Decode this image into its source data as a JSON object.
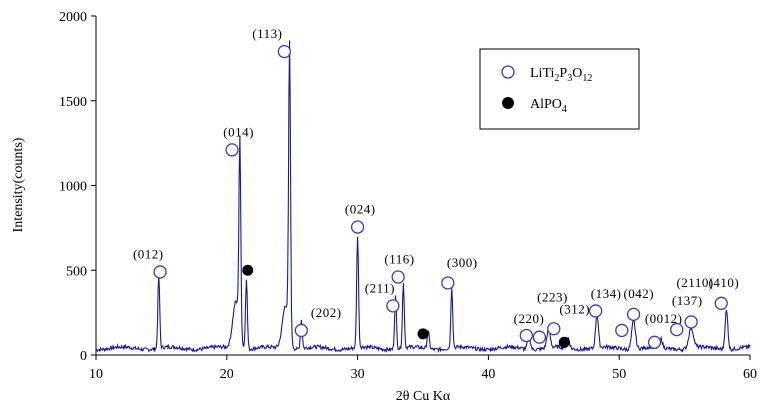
{
  "chart_data": {
    "type": "line",
    "xlabel": "2θ Cu Kα",
    "ylabel": "Intensity(counts)",
    "xlim": [
      10,
      60
    ],
    "ylim": [
      0,
      2000
    ],
    "x_ticks": [
      10,
      20,
      30,
      40,
      50,
      60
    ],
    "y_ticks": [
      0,
      500,
      1000,
      1500,
      2000
    ],
    "grid": false,
    "line_color": "#1a1a8c",
    "baseline": 40,
    "peaks": [
      {
        "x": 14.8,
        "y": 430,
        "w": 0.1
      },
      {
        "x": 20.7,
        "y": 280,
        "w": 0.35
      },
      {
        "x": 21.0,
        "y": 1120,
        "w": 0.1
      },
      {
        "x": 21.5,
        "y": 420,
        "w": 0.1
      },
      {
        "x": 24.5,
        "y": 260,
        "w": 0.35
      },
      {
        "x": 24.8,
        "y": 1700,
        "w": 0.1
      },
      {
        "x": 25.7,
        "y": 170,
        "w": 0.1
      },
      {
        "x": 30.0,
        "y": 660,
        "w": 0.1
      },
      {
        "x": 32.9,
        "y": 310,
        "w": 0.1
      },
      {
        "x": 33.5,
        "y": 380,
        "w": 0.1
      },
      {
        "x": 35.4,
        "y": 100,
        "w": 0.12
      },
      {
        "x": 37.2,
        "y": 360,
        "w": 0.1
      },
      {
        "x": 43.1,
        "y": 80,
        "w": 0.15
      },
      {
        "x": 44.6,
        "y": 110,
        "w": 0.18
      },
      {
        "x": 46.1,
        "y": 60,
        "w": 0.15
      },
      {
        "x": 48.3,
        "y": 200,
        "w": 0.15
      },
      {
        "x": 51.1,
        "y": 170,
        "w": 0.2
      },
      {
        "x": 53.2,
        "y": 50,
        "w": 0.15
      },
      {
        "x": 55.5,
        "y": 120,
        "w": 0.25
      },
      {
        "x": 58.2,
        "y": 230,
        "w": 0.15
      }
    ],
    "annotations": [
      {
        "label": "(012)",
        "marker": "open",
        "mx": 14.9,
        "my": 490,
        "lx": 14.0,
        "ly": 570
      },
      {
        "label": "(014)",
        "marker": "open",
        "mx": 20.4,
        "my": 1210,
        "lx": 20.9,
        "ly": 1290
      },
      {
        "label": "(113)",
        "marker": "open",
        "mx": 24.4,
        "my": 1790,
        "lx": 23.1,
        "ly": 1870
      },
      {
        "label": "(202)",
        "marker": "open",
        "mx": 25.7,
        "my": 145,
        "lx": 27.6,
        "ly": 225
      },
      {
        "label": "(024)",
        "marker": "open",
        "mx": 30.0,
        "my": 755,
        "lx": 30.2,
        "ly": 835
      },
      {
        "label": "(211)",
        "marker": "open",
        "mx": 32.7,
        "my": 290,
        "lx": 31.7,
        "ly": 370
      },
      {
        "label": "(116)",
        "marker": "open",
        "mx": 33.1,
        "my": 460,
        "lx": 33.2,
        "ly": 540
      },
      {
        "label": "(300)",
        "marker": "open",
        "mx": 36.9,
        "my": 425,
        "lx": 38.0,
        "ly": 520
      },
      {
        "label": "(220)",
        "marker": "open",
        "mx": 42.9,
        "my": 115,
        "lx": 43.1,
        "ly": 190
      },
      {
        "label": "(223)",
        "marker": "open",
        "mx": 43.9,
        "my": 105,
        "lx": 44.9,
        "ly": 315
      },
      {
        "label": "(312)",
        "marker": "open",
        "mx": 45.0,
        "my": 155,
        "lx": 46.6,
        "ly": 245
      },
      {
        "label": "(134)",
        "marker": "open",
        "mx": 48.2,
        "my": 260,
        "lx": 49.0,
        "ly": 335
      },
      {
        "label": "(042)",
        "marker": "open",
        "mx": 50.2,
        "my": 145,
        "lx": 51.5,
        "ly": 335
      },
      {
        "label": "",
        "marker": "open",
        "mx": 51.1,
        "my": 240,
        "lx": 0,
        "ly": 0
      },
      {
        "label": "(0012)",
        "marker": "open",
        "mx": 52.7,
        "my": 75,
        "lx": 53.4,
        "ly": 190
      },
      {
        "label": "(137)",
        "marker": "open",
        "mx": 54.4,
        "my": 150,
        "lx": 55.2,
        "ly": 295
      },
      {
        "label": "(2110)",
        "marker": "open",
        "mx": 55.5,
        "my": 195,
        "lx": 55.8,
        "ly": 400
      },
      {
        "label": "(410)",
        "marker": "open",
        "mx": 57.8,
        "my": 305,
        "lx": 58.0,
        "ly": 400
      },
      {
        "label": "",
        "marker": "filled",
        "mx": 21.6,
        "my": 500,
        "lx": 0,
        "ly": 0
      },
      {
        "label": "",
        "marker": "filled",
        "mx": 35.0,
        "my": 125,
        "lx": 0,
        "ly": 0
      },
      {
        "label": "",
        "marker": "filled",
        "mx": 45.8,
        "my": 75,
        "lx": 0,
        "ly": 0
      }
    ],
    "legend": {
      "placement": "top-right",
      "entries": [
        {
          "marker": "open",
          "text": "LiTi",
          "sub1": "2",
          "mid": "P",
          "sub2": "3",
          "end": "O",
          "sub3": "12"
        },
        {
          "marker": "filled",
          "text": "AlPO",
          "sub1": "4",
          "mid": "",
          "sub2": "",
          "end": "",
          "sub3": ""
        }
      ]
    },
    "marker_color": "#3a3ab8",
    "filled_color": "#000000"
  }
}
